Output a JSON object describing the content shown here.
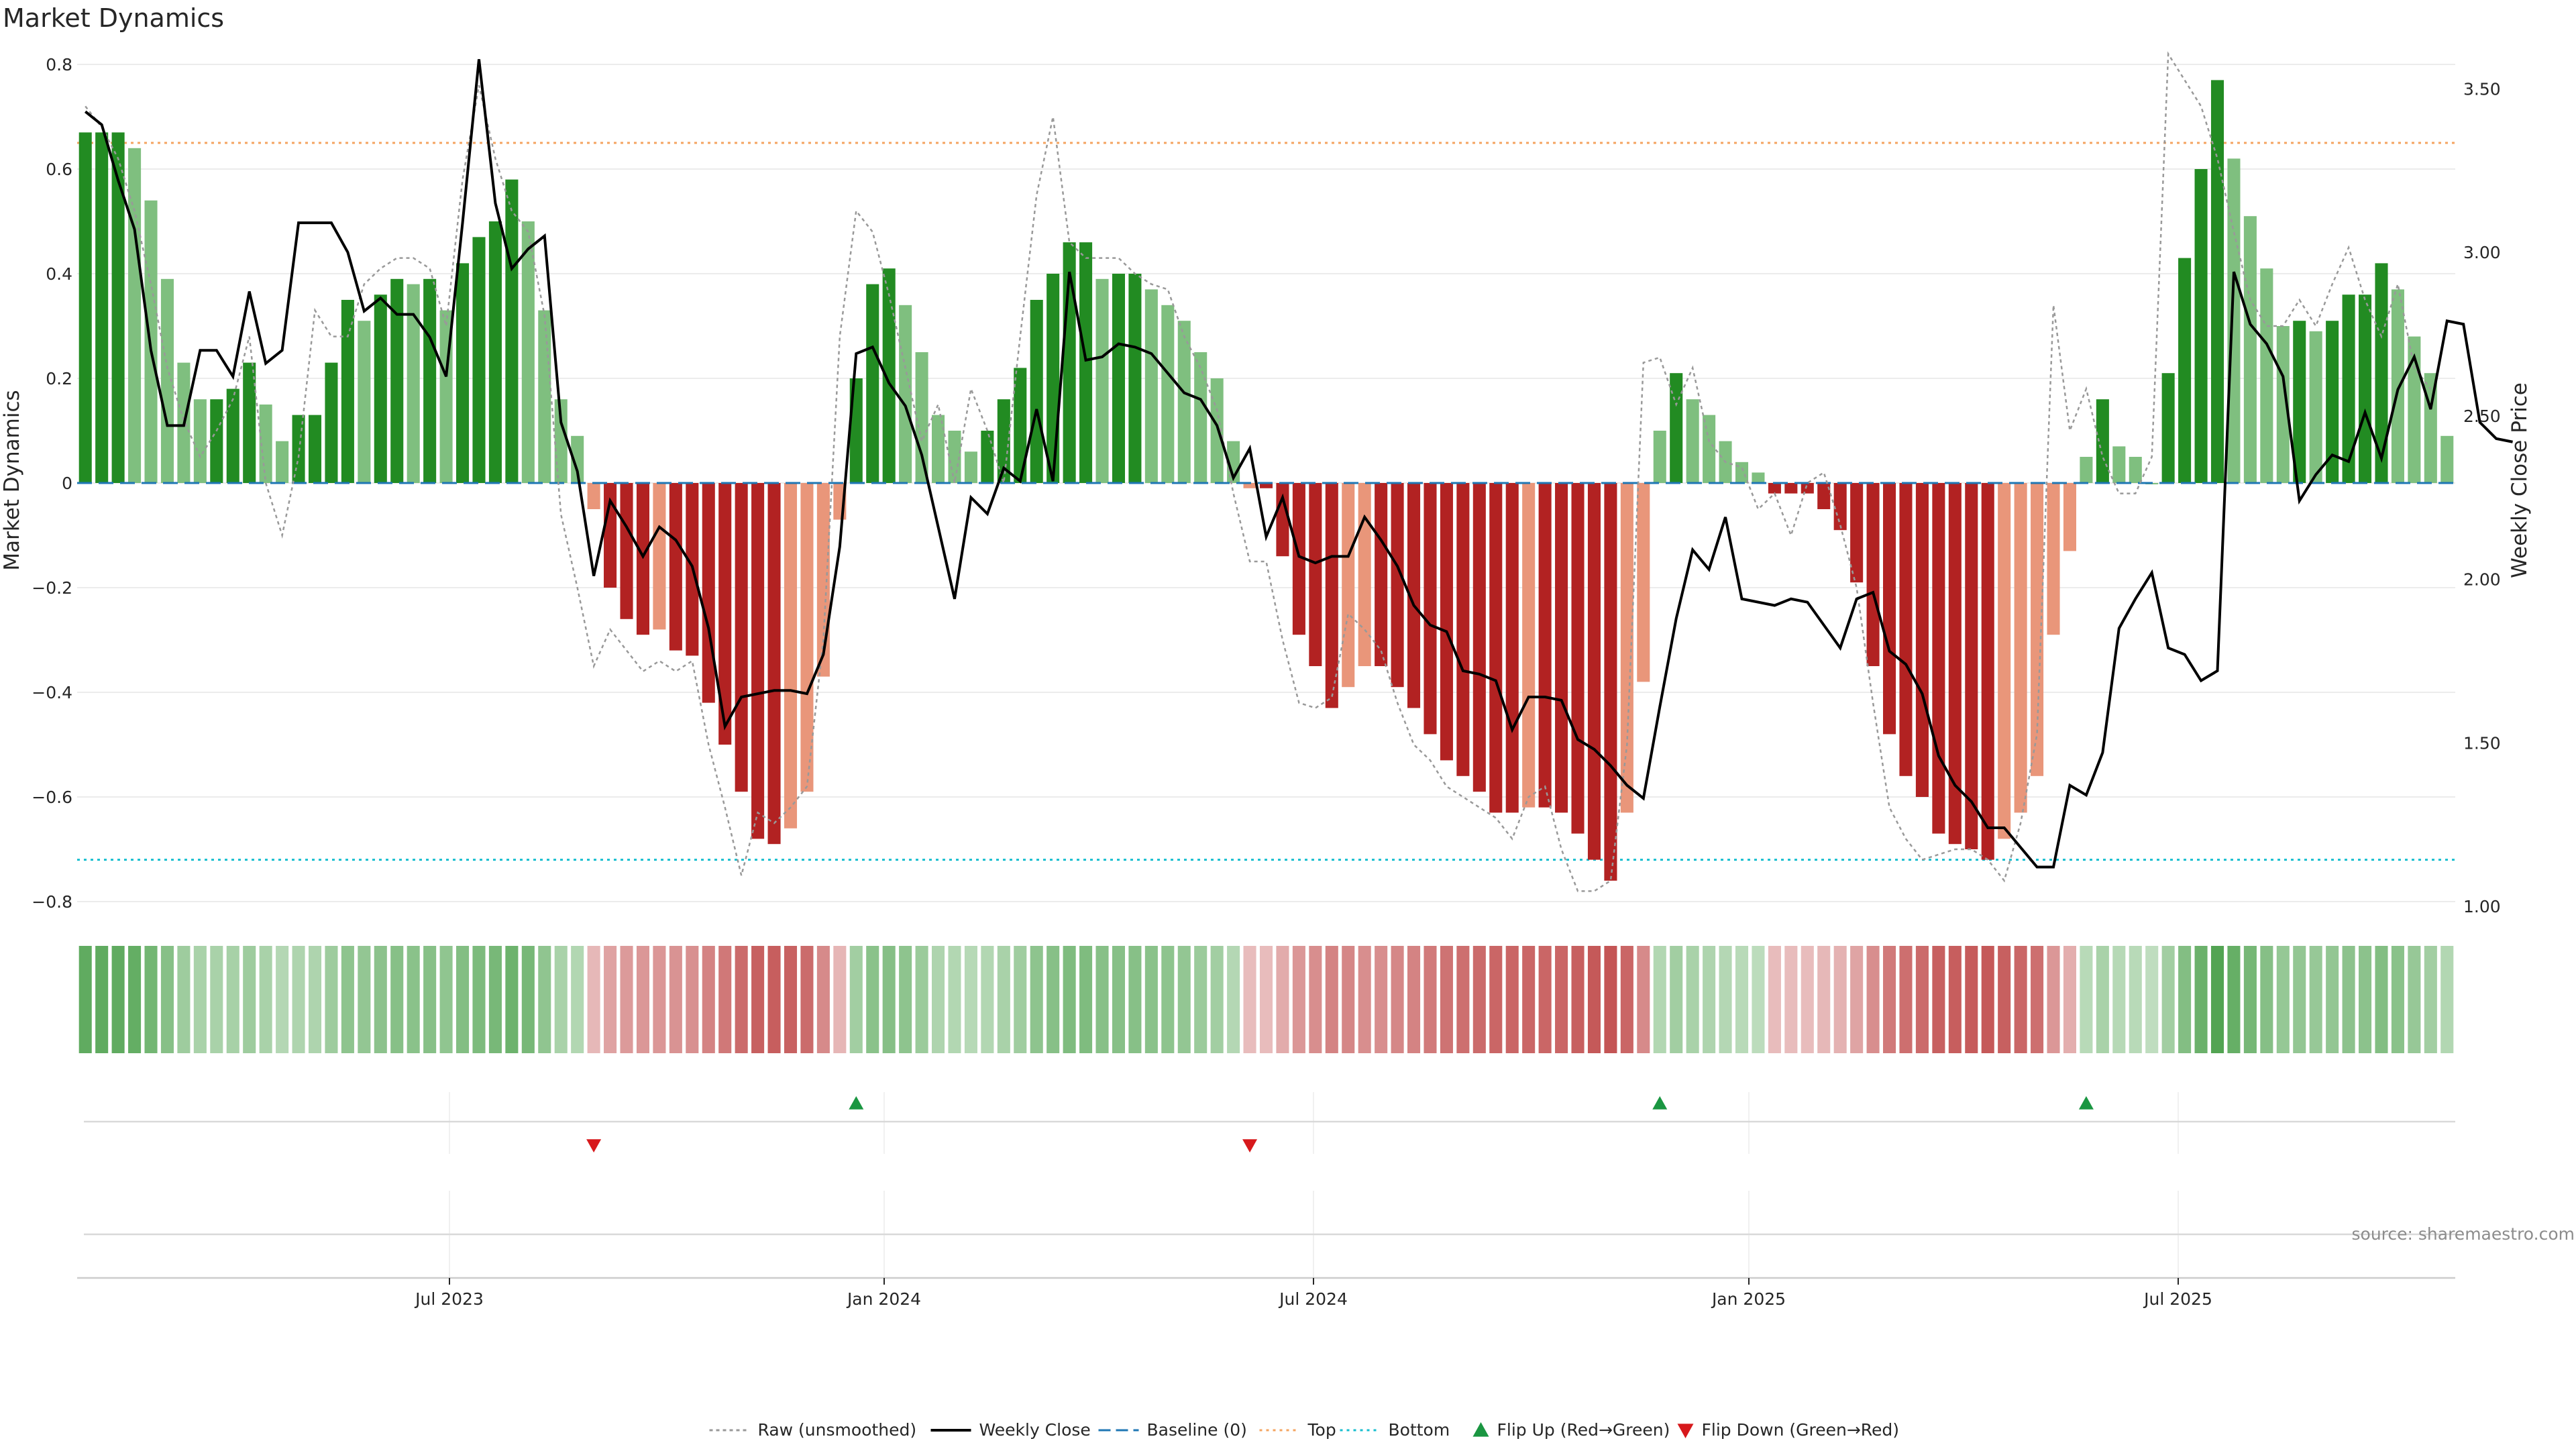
{
  "chart_data": {
    "type": "bar",
    "title": "Market Dynamics",
    "ylabel_left": "Market Dynamics",
    "ylabel_right": "Weekly Close Price",
    "source": "source: sharemaestro.com",
    "ylim_left": [
      -0.8,
      0.8
    ],
    "ylim_right": [
      1.0,
      3.6
    ],
    "yticks_left": [
      "0.8",
      "0.6",
      "0.4",
      "0.2",
      "0",
      "−0.2",
      "−0.4",
      "−0.6",
      "−0.8"
    ],
    "yticks_right": [
      "3.50",
      "3.00",
      "2.50",
      "2.00",
      "1.50",
      "1.00"
    ],
    "x_ticks": [
      "Jul 2023",
      "Jan 2024",
      "Jul 2024",
      "Jan 2025",
      "Jul 2025"
    ],
    "top_line": 0.65,
    "bottom_line": -0.72,
    "baseline": 0,
    "grid": true,
    "legend_position": "bottom-center",
    "legend": [
      {
        "label": "Raw (unsmoothed)",
        "style": "dotted-gray"
      },
      {
        "label": "Weekly Close",
        "style": "solid-black"
      },
      {
        "label": "Baseline (0)",
        "style": "dashed-blue"
      },
      {
        "label": "Top",
        "style": "dotted-orange"
      },
      {
        "label": "Bottom",
        "style": "dotted-cyan"
      },
      {
        "label": "Flip Up (Red→Green)",
        "style": "triangle-up-green"
      },
      {
        "label": "Flip Down (Green→Red)",
        "style": "triangle-down-red"
      }
    ],
    "colors": {
      "green_strong": "#228b22",
      "green_light": "#7fbf7f",
      "red_strong": "#b22222",
      "red_light": "#e9967a",
      "raw_line": "#999999",
      "close_line": "#000000",
      "baseline": "#1f77b4",
      "top": "#f4a460",
      "bottom": "#17becf",
      "flip_up": "#1a9641",
      "flip_down": "#d7191c"
    },
    "bars": [
      0.67,
      0.67,
      0.67,
      0.64,
      0.54,
      0.39,
      0.23,
      0.16,
      0.16,
      0.18,
      0.23,
      0.15,
      0.08,
      0.13,
      0.13,
      0.23,
      0.35,
      0.31,
      0.36,
      0.39,
      0.38,
      0.39,
      0.33,
      0.42,
      0.47,
      0.5,
      0.58,
      0.5,
      0.33,
      0.16,
      0.09,
      -0.05,
      -0.2,
      -0.26,
      -0.29,
      -0.28,
      -0.32,
      -0.33,
      -0.42,
      -0.5,
      -0.59,
      -0.68,
      -0.69,
      -0.66,
      -0.59,
      -0.37,
      -0.07,
      0.2,
      0.38,
      0.41,
      0.34,
      0.25,
      0.13,
      0.1,
      0.06,
      0.1,
      0.16,
      0.22,
      0.35,
      0.4,
      0.46,
      0.46,
      0.39,
      0.4,
      0.4,
      0.37,
      0.34,
      0.31,
      0.25,
      0.2,
      0.08,
      -0.01,
      -0.01,
      -0.14,
      -0.29,
      -0.35,
      -0.43,
      -0.39,
      -0.35,
      -0.35,
      -0.39,
      -0.43,
      -0.48,
      -0.53,
      -0.56,
      -0.59,
      -0.63,
      -0.63,
      -0.62,
      -0.62,
      -0.63,
      -0.67,
      -0.72,
      -0.76,
      -0.63,
      -0.38,
      0.1,
      0.21,
      0.16,
      0.13,
      0.08,
      0.04,
      0.02,
      -0.02,
      -0.02,
      -0.02,
      -0.05,
      -0.09,
      -0.19,
      -0.35,
      -0.48,
      -0.56,
      -0.6,
      -0.67,
      -0.69,
      -0.7,
      -0.72,
      -0.68,
      -0.63,
      -0.56,
      -0.29,
      -0.13,
      0.05,
      0.16,
      0.07,
      0.05,
      0.0,
      0.21,
      0.43,
      0.6,
      0.77,
      0.62,
      0.51,
      0.41,
      0.3,
      0.31,
      0.29,
      0.31,
      0.36,
      0.36,
      0.42,
      0.37,
      0.28,
      0.21,
      0.09
    ],
    "weekly_close": [
      3.43,
      3.39,
      3.22,
      3.07,
      2.7,
      2.47,
      2.47,
      2.7,
      2.7,
      2.62,
      2.88,
      2.66,
      2.7,
      3.09,
      3.09,
      3.09,
      3.0,
      2.82,
      2.86,
      2.81,
      2.81,
      2.74,
      2.62,
      3.09,
      3.59,
      3.15,
      2.95,
      3.01,
      3.05,
      2.48,
      2.33,
      2.01,
      2.24,
      2.16,
      2.07,
      2.16,
      2.12,
      2.04,
      1.85,
      1.55,
      1.64,
      1.65,
      1.66,
      1.66,
      1.65,
      1.77,
      2.1,
      2.69,
      2.71,
      2.6,
      2.53,
      2.38,
      2.16,
      1.94,
      2.25,
      2.2,
      2.34,
      2.3,
      2.52,
      2.3,
      2.94,
      2.67,
      2.68,
      2.72,
      2.71,
      2.69,
      2.63,
      2.57,
      2.55,
      2.47,
      2.31,
      2.4,
      2.13,
      2.25,
      2.07,
      2.05,
      2.07,
      2.07,
      2.19,
      2.12,
      2.04,
      1.92,
      1.86,
      1.84,
      1.72,
      1.71,
      1.69,
      1.54,
      1.64,
      1.64,
      1.63,
      1.51,
      1.48,
      1.43,
      1.37,
      1.33,
      1.61,
      1.88,
      2.09,
      2.03,
      2.19,
      1.94,
      1.93,
      1.92,
      1.94,
      1.93,
      1.86,
      1.79,
      1.94,
      1.96,
      1.78,
      1.74,
      1.65,
      1.46,
      1.37,
      1.32,
      1.24,
      1.24,
      1.18,
      1.12,
      1.12,
      1.37,
      1.34,
      1.47,
      1.85,
      1.94,
      2.02,
      1.79,
      1.77,
      1.69,
      1.72,
      2.94,
      2.78,
      2.72,
      2.62,
      2.24,
      2.32,
      2.38,
      2.36,
      2.51,
      2.37,
      2.58,
      2.68,
      2.52,
      2.79,
      2.78,
      2.48,
      2.43,
      2.42
    ],
    "raw": [
      0.72,
      0.68,
      0.62,
      0.52,
      0.38,
      0.22,
      0.12,
      0.05,
      0.1,
      0.16,
      0.28,
      0.0,
      -0.1,
      0.05,
      0.33,
      0.28,
      0.28,
      0.38,
      0.41,
      0.43,
      0.43,
      0.41,
      0.3,
      0.58,
      0.76,
      0.62,
      0.52,
      0.48,
      0.32,
      -0.06,
      -0.2,
      -0.35,
      -0.28,
      -0.32,
      -0.36,
      -0.34,
      -0.36,
      -0.34,
      -0.5,
      -0.62,
      -0.75,
      -0.63,
      -0.65,
      -0.62,
      -0.58,
      -0.3,
      0.28,
      0.52,
      0.48,
      0.36,
      0.22,
      0.08,
      0.15,
      0.0,
      0.18,
      0.1,
      0.0,
      0.28,
      0.55,
      0.7,
      0.46,
      0.43,
      0.43,
      0.43,
      0.4,
      0.38,
      0.37,
      0.28,
      0.22,
      0.14,
      -0.02,
      -0.15,
      -0.15,
      -0.3,
      -0.42,
      -0.43,
      -0.41,
      -0.25,
      -0.28,
      -0.32,
      -0.42,
      -0.5,
      -0.53,
      -0.58,
      -0.6,
      -0.62,
      -0.64,
      -0.68,
      -0.6,
      -0.58,
      -0.7,
      -0.78,
      -0.78,
      -0.76,
      -0.5,
      0.23,
      0.24,
      0.15,
      0.22,
      0.08,
      0.04,
      0.03,
      -0.05,
      -0.02,
      -0.1,
      0.0,
      0.02,
      -0.08,
      -0.2,
      -0.42,
      -0.62,
      -0.68,
      -0.72,
      -0.71,
      -0.7,
      -0.7,
      -0.72,
      -0.76,
      -0.65,
      -0.48,
      0.34,
      0.1,
      0.18,
      0.05,
      -0.02,
      -0.02,
      0.05,
      0.82,
      0.77,
      0.72,
      0.62,
      0.48,
      0.35,
      0.3,
      0.3,
      0.35,
      0.3,
      0.38,
      0.45,
      0.35,
      0.28,
      0.38,
      0.22,
      0.18
    ]
  }
}
